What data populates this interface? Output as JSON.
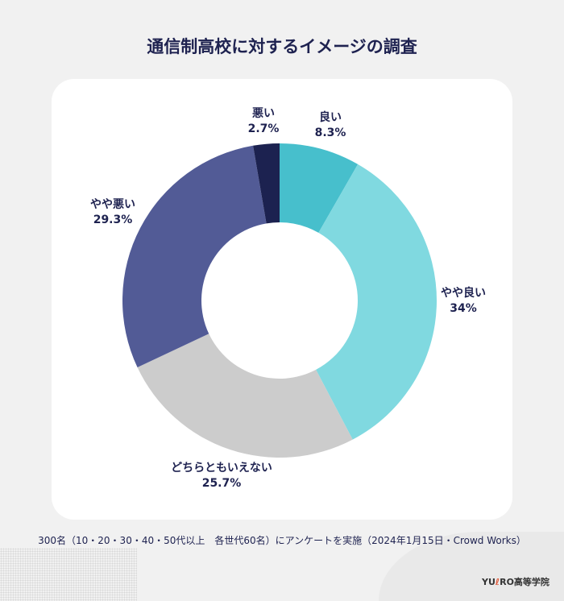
{
  "title": "通信制高校に対するイメージの調査",
  "chart_data": {
    "type": "pie",
    "donut": true,
    "start": "top",
    "direction": "clockwise",
    "slices": [
      {
        "label": "良い",
        "value": 8.3,
        "display": "8.3%",
        "color": "#47bfcc"
      },
      {
        "label": "やや良い",
        "value": 34,
        "display": "34%",
        "color": "#80d9e0"
      },
      {
        "label": "どちらともいえない",
        "value": 25.7,
        "display": "25.7%",
        "color": "#cccccc"
      },
      {
        "label": "やや悪い",
        "value": 29.3,
        "display": "29.3%",
        "color": "#525b96"
      },
      {
        "label": "悪い",
        "value": 2.7,
        "display": "2.7%",
        "color": "#1c2250"
      }
    ]
  },
  "footer": "300名（10・20・30・40・50代以上　各世代60名）にアンケートを実施（2024年1月15日・Crowd Works）",
  "logo": "YUКRO高等学院"
}
